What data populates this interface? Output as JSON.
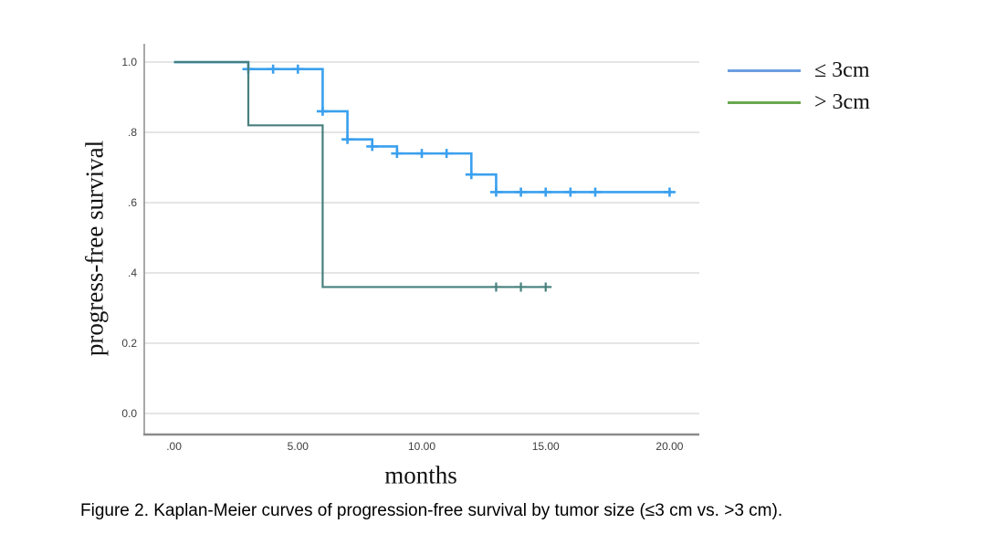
{
  "figure": {
    "caption": "Figure 2. Kaplan-Meier curves of progression-free survival by tumor size (≤3 cm vs. >3 cm)."
  },
  "chart_data": {
    "type": "line",
    "subtype": "kaplan-meier-step",
    "title": "",
    "xlabel": "months",
    "ylabel": "progress-free survival",
    "xlim": [
      -1.2,
      21.2
    ],
    "ylim": [
      -0.057,
      1.052
    ],
    "grid": true,
    "legend_position": "right",
    "x_ticks": [
      {
        "value": 0,
        "label": ".00"
      },
      {
        "value": 5,
        "label": "5.00"
      },
      {
        "value": 10,
        "label": "10.00"
      },
      {
        "value": 15,
        "label": "15.00"
      },
      {
        "value": 20,
        "label": "20.00"
      }
    ],
    "y_ticks": [
      {
        "value": 1.0,
        "label": "1.0"
      },
      {
        "value": 0.8,
        "label": ".8"
      },
      {
        "value": 0.6,
        "label": ".6"
      },
      {
        "value": 0.4,
        "label": ".4"
      },
      {
        "value": 0.2,
        "label": "0.2"
      },
      {
        "value": 0.0,
        "label": "0.0"
      }
    ],
    "colors": {
      "grid": "#cbcbcb",
      "axis": "#8c8c8c",
      "tick_text": "#3d3d3d"
    },
    "series": [
      {
        "name": "≤ 3cm",
        "curve_color": "#3aa0ee",
        "legend_color": "#6d9ee0",
        "steps": [
          [
            0,
            1.0
          ],
          [
            3,
            0.98
          ],
          [
            6,
            0.86
          ],
          [
            7,
            0.78
          ],
          [
            8,
            0.76
          ],
          [
            9,
            0.74
          ],
          [
            12,
            0.68
          ],
          [
            13,
            0.63
          ],
          [
            20.1,
            0.63
          ]
        ],
        "censor_marks": [
          [
            3,
            0.98
          ],
          [
            4,
            0.98
          ],
          [
            5,
            0.98
          ],
          [
            6,
            0.86
          ],
          [
            7,
            0.78
          ],
          [
            8,
            0.76
          ],
          [
            9,
            0.74
          ],
          [
            10,
            0.74
          ],
          [
            11,
            0.74
          ],
          [
            12,
            0.68
          ],
          [
            13,
            0.63
          ],
          [
            14,
            0.63
          ],
          [
            15,
            0.63
          ],
          [
            16,
            0.63
          ],
          [
            17,
            0.63
          ],
          [
            20,
            0.63
          ]
        ]
      },
      {
        "name": "> 3cm",
        "curve_color": "#47807e",
        "legend_color": "#6aa84f",
        "steps": [
          [
            0,
            1.0
          ],
          [
            3,
            0.82
          ],
          [
            6,
            0.36
          ],
          [
            15.2,
            0.36
          ]
        ],
        "censor_marks": [
          [
            13,
            0.36
          ],
          [
            14,
            0.36
          ],
          [
            15,
            0.36
          ]
        ]
      }
    ]
  }
}
